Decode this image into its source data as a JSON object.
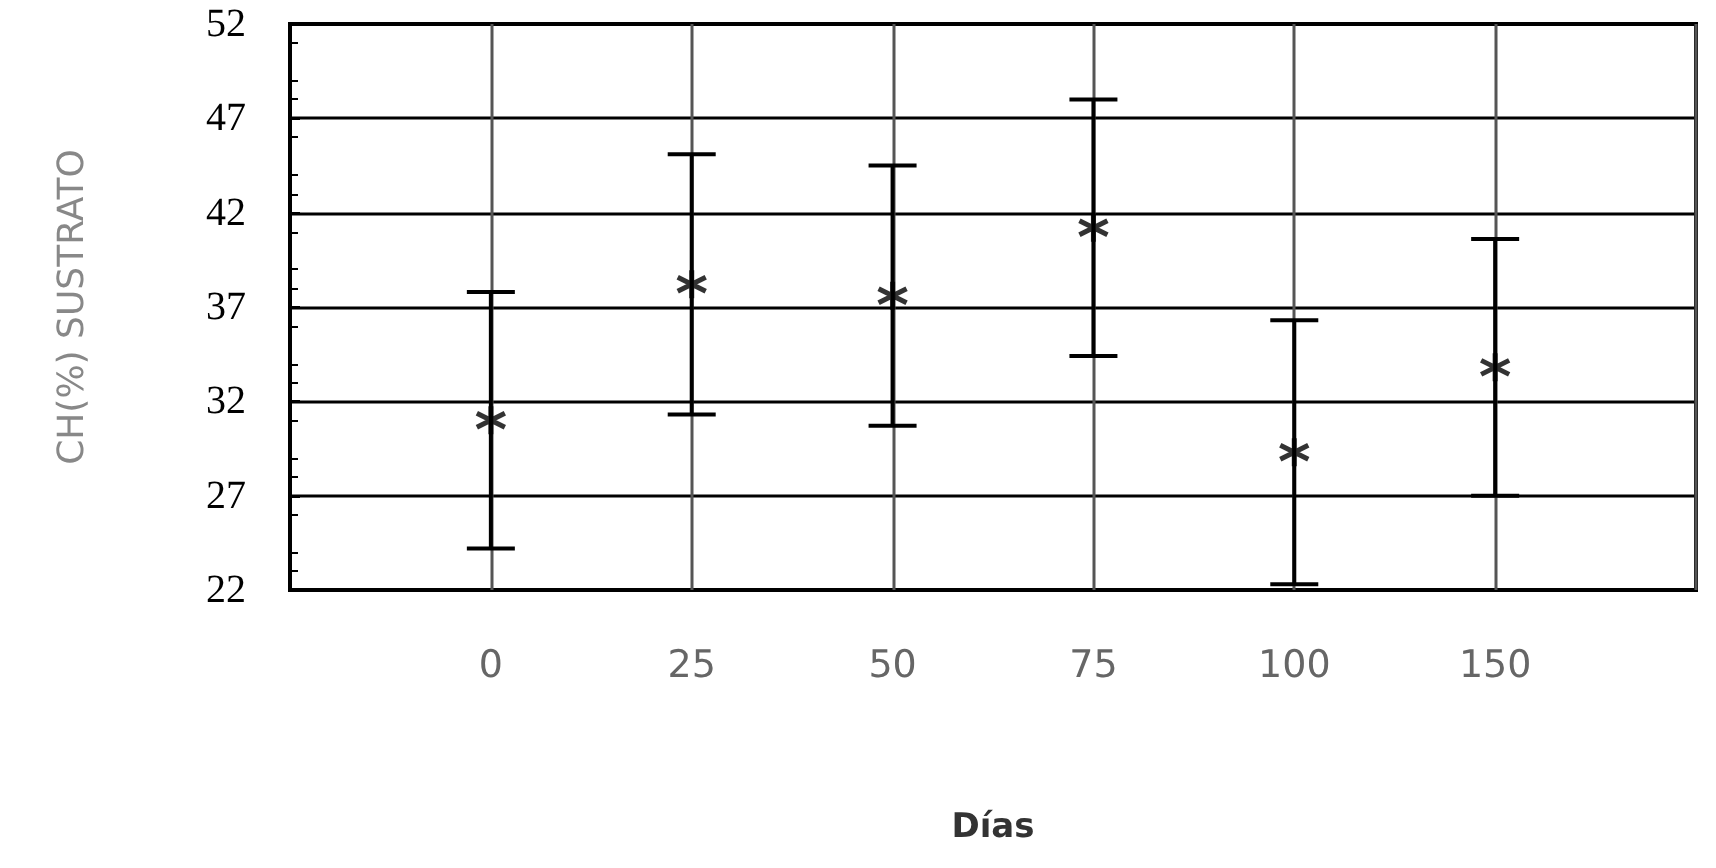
{
  "chart_data": {
    "type": "scatter",
    "xlabel": "Días",
    "ylabel": "CH(%) SUSTRATO",
    "categories": [
      "0",
      "25",
      "50",
      "75",
      "100",
      "150"
    ],
    "series": [
      {
        "color": "#000000",
        "values": [
          31,
          38.2,
          37.6,
          41.2,
          29.3,
          33.8
        ],
        "errors": [
          6.8,
          6.9,
          6.9,
          6.8,
          7,
          6.8
        ]
      }
    ],
    "ylim": [
      22,
      52
    ],
    "yticks": [
      22,
      27,
      32,
      37,
      42,
      47,
      52
    ],
    "grid": true,
    "marker": "cross"
  }
}
